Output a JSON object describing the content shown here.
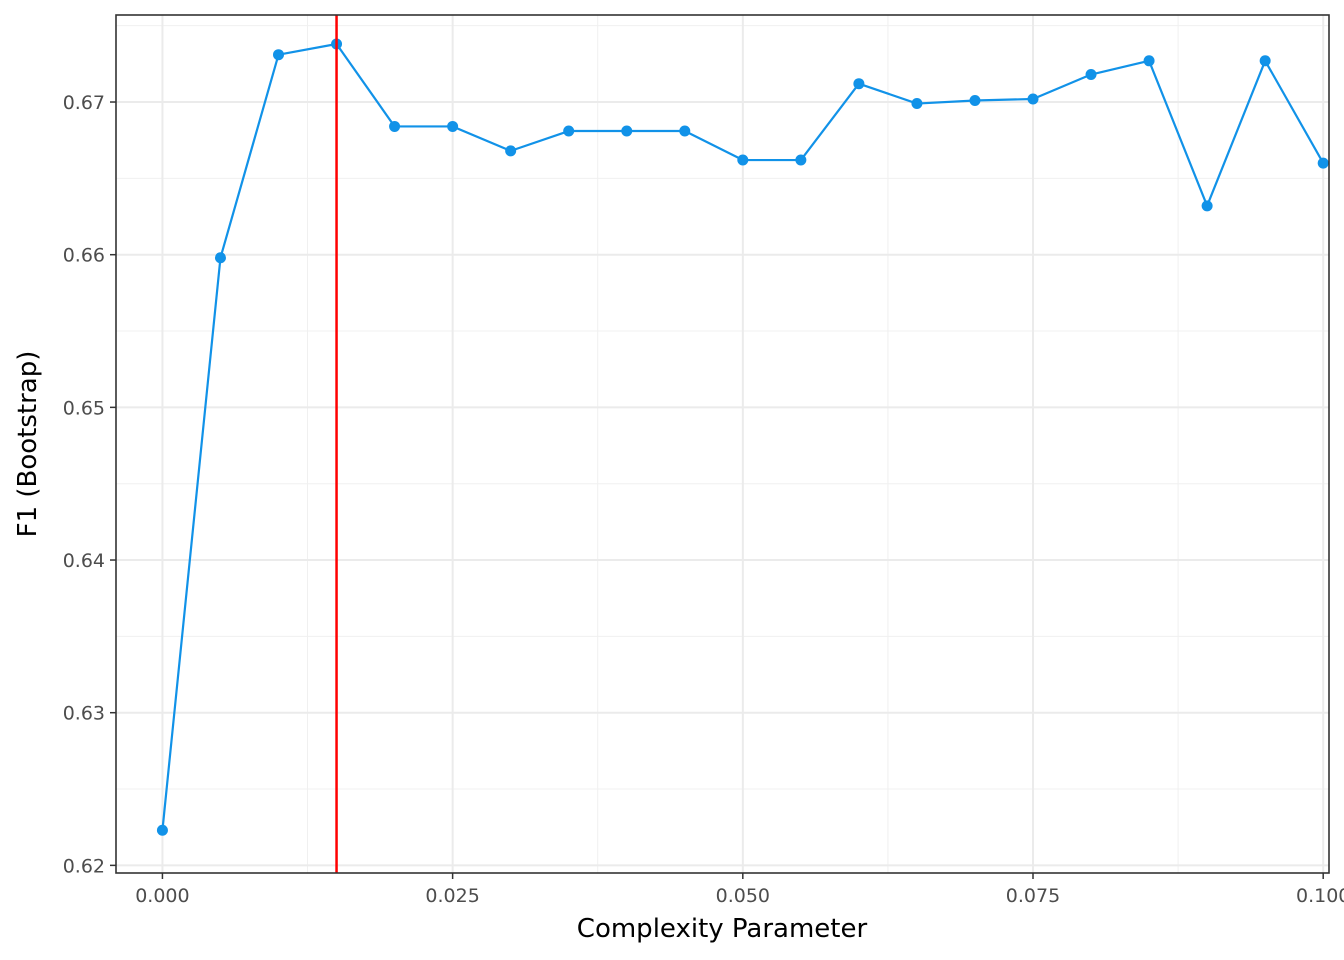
{
  "chart_data": {
    "type": "line",
    "title": "",
    "xlabel": "Complexity Parameter",
    "ylabel": "F1 (Bootstrap)",
    "xlim": [
      -0.004,
      0.1005
    ],
    "ylim": [
      0.6195,
      0.6757
    ],
    "x_ticks": [
      0.0,
      0.025,
      0.05,
      0.075,
      0.1
    ],
    "x_tick_labels": [
      "0.000",
      "0.025",
      "0.050",
      "0.075",
      "0.100"
    ],
    "y_ticks": [
      0.62,
      0.63,
      0.64,
      0.65,
      0.66,
      0.67
    ],
    "y_tick_labels": [
      "0.62",
      "0.63",
      "0.64",
      "0.65",
      "0.66",
      "0.67"
    ],
    "grid": true,
    "vline": {
      "x": 0.015,
      "color": "#ff0000"
    },
    "series": [
      {
        "color": "#1192e8",
        "x": [
          0.0,
          0.005,
          0.01,
          0.015,
          0.02,
          0.025,
          0.03,
          0.035,
          0.04,
          0.045,
          0.05,
          0.055,
          0.06,
          0.065,
          0.07,
          0.075,
          0.08,
          0.085,
          0.09,
          0.095,
          0.1
        ],
        "y": [
          0.6223,
          0.6598,
          0.6731,
          0.6738,
          0.6684,
          0.6684,
          0.6668,
          0.6681,
          0.6681,
          0.6681,
          0.6662,
          0.6662,
          0.6712,
          0.6699,
          0.6701,
          0.6702,
          0.6718,
          0.6727,
          0.6632,
          0.6727,
          0.666
        ]
      }
    ]
  }
}
